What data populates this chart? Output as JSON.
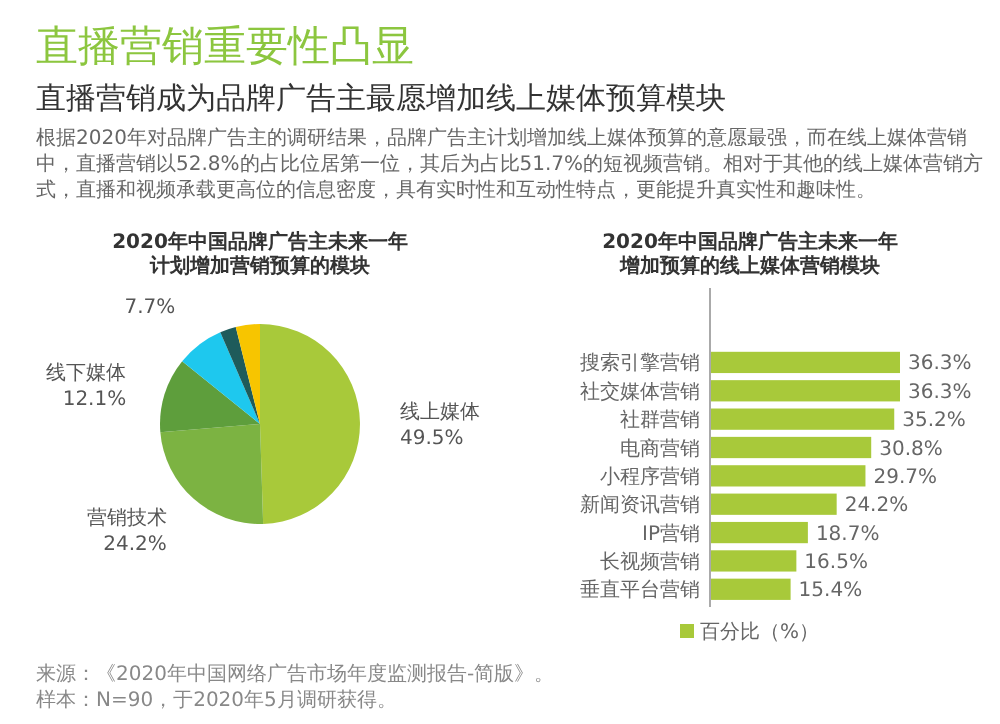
{
  "chart_data": [
    {
      "type": "other",
      "title": "直播营销重要性凸显",
      "subtitle": "直播营销成为品牌广告主最愿增加线上媒体预算模块",
      "annotations": [
        "根据2020年对品牌广告主的调研结果，品牌广告主计划增加线上媒体预算的意愿最强，而在线上媒体营销中，直播营销以52.8%的占比位居第一位，其后为占比51.7%的短视频营销。相对于其他的线上媒体营销方式，直播和视频承载更高位的信息密度，具有实时性和互动性特点，更能提升真实性和趣味性。"
      ]
    },
    {
      "type": "pie",
      "title": "2020年中国品牌广告主未来一年计划增加营销预算的模块",
      "categories": [
        "线上媒体",
        "营销技术",
        "线下媒体",
        null,
        null,
        null
      ],
      "values": [
        49.5,
        24.2,
        12.1,
        7.7,
        2.6,
        3.9
      ],
      "value_labels": [
        "49.5%",
        "24.2%",
        "12.1%",
        "7.7%",
        null,
        null
      ],
      "colors": [
        "#a8c93a",
        "#7cb342",
        "#5e9e3c",
        "#1ec8ee",
        "#1e5b5b",
        "#f7c500"
      ],
      "annotations": [
        "来源：《2020年中国网络广告市场年度监测报告-简版》。",
        "样本：N=90，于2020年5月调研获得。"
      ]
    },
    {
      "type": "bar",
      "orientation": "horizontal",
      "title": "2020年中国品牌广告主未来一年增加预算的线上媒体营销模块",
      "categories": [
        null,
        null,
        "搜索引擎营销",
        "社交媒体营销",
        "社群营销",
        "电商营销",
        "小程序营销",
        "新闻资讯营销",
        "IP营销",
        "长视频营销",
        "垂直平台营销"
      ],
      "series": [
        {
          "name": "百分比（%）",
          "color": "#a8c93a",
          "values": [
            null,
            null,
            36.3,
            36.3,
            35.2,
            30.8,
            29.7,
            24.2,
            18.7,
            16.5,
            15.4
          ],
          "value_labels": [
            null,
            null,
            "36.3%",
            "36.3%",
            "35.2%",
            "30.8%",
            "29.7%",
            "24.2%",
            "18.7%",
            "16.5%",
            "15.4%"
          ]
        }
      ],
      "legend": "bottom"
    }
  ]
}
